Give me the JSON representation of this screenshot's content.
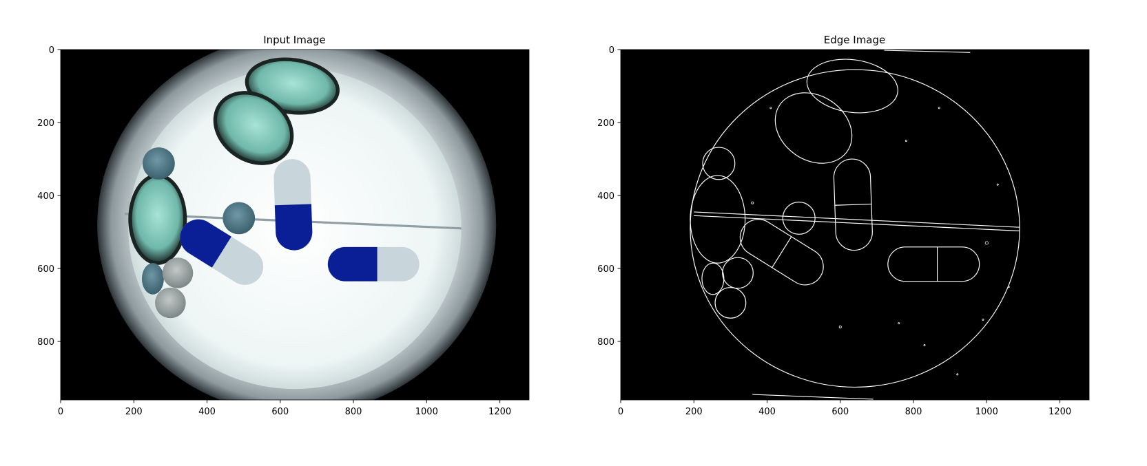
{
  "figure": {
    "panels": [
      {
        "title": "Input Image",
        "x_ticks": [
          "0",
          "200",
          "400",
          "600",
          "800",
          "1000",
          "1200"
        ],
        "y_ticks": [
          "0",
          "200",
          "400",
          "600",
          "800"
        ]
      },
      {
        "title": "Edge Image",
        "x_ticks": [
          "0",
          "200",
          "400",
          "600",
          "800",
          "1000",
          "1200"
        ],
        "y_ticks": [
          "0",
          "200",
          "400",
          "600",
          "800"
        ]
      }
    ]
  },
  "image_extent": {
    "width": 1280,
    "height": 960
  },
  "colors": {
    "background_black": "#000000",
    "dish_light": "#f4fafa",
    "ring_gray": "#9aa6aa",
    "capsule_blue": "#0a1f96",
    "softgel_teal": "#86cfc2",
    "tablet_gray": "#a9b0b0",
    "edge_white": "#ffffff"
  }
}
